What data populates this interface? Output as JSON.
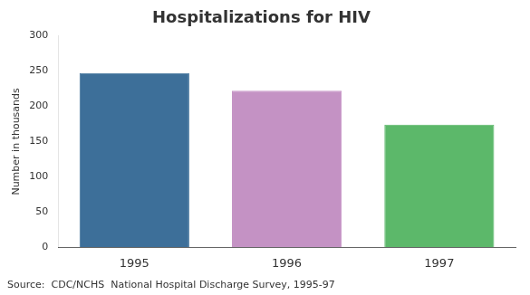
{
  "chart_data": {
    "type": "bar",
    "title": "Hospitalizations for HIV",
    "ylabel": "Number in thousands",
    "categories": [
      "1995",
      "1996",
      "1997"
    ],
    "values": [
      247,
      222,
      174
    ],
    "colors": [
      "#3d6f99",
      "#c492c4",
      "#5cb86a"
    ],
    "ylim": [
      0,
      300
    ],
    "yticks": [
      0,
      50,
      100,
      150,
      200,
      250,
      300
    ],
    "grid": false,
    "annotations": [
      "Source:  CDC/NCHS  National Hospital Discharge Survey, 1995-97"
    ]
  }
}
